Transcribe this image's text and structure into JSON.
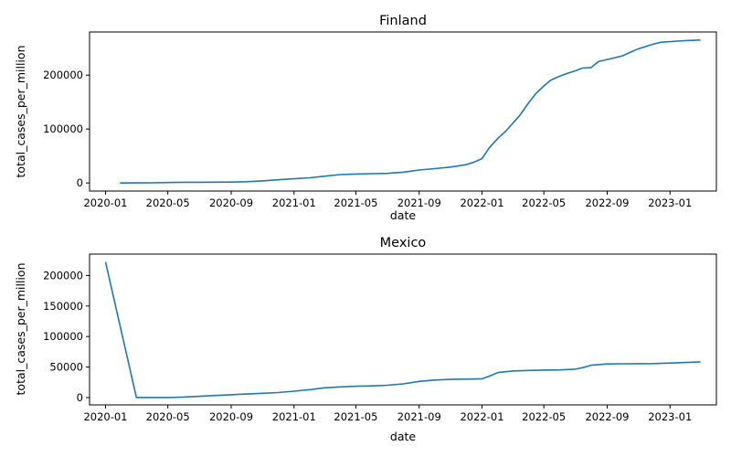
{
  "colors": {
    "line": "#1f77b4",
    "axis": "#000000",
    "background": "#ffffff"
  },
  "chart_data": [
    {
      "type": "line",
      "title": "Finland",
      "xlabel": "date",
      "ylabel": "total_cases_per_million",
      "xlim": [
        "2019-12-01",
        "2023-04-01"
      ],
      "ylim": [
        -15000,
        280000
      ],
      "x_ticks": [
        "2020-01",
        "2020-05",
        "2020-09",
        "2021-01",
        "2021-05",
        "2021-09",
        "2022-01",
        "2022-05",
        "2022-09",
        "2023-01"
      ],
      "y_ticks": [
        0,
        100000,
        200000
      ],
      "y_tick_labels": [
        "0",
        "100000",
        "200000"
      ],
      "grid": false,
      "series": [
        {
          "x": [
            "2020-01-29",
            "2020-03-01",
            "2020-04-01",
            "2020-05-01",
            "2020-06-01",
            "2020-07-01",
            "2020-08-01",
            "2020-09-01",
            "2020-10-01",
            "2020-11-01",
            "2020-12-01",
            "2021-01-01",
            "2021-02-01",
            "2021-03-01",
            "2021-04-01",
            "2021-05-01",
            "2021-06-01",
            "2021-07-01",
            "2021-08-01",
            "2021-09-01",
            "2021-10-01",
            "2021-11-01",
            "2021-12-01",
            "2021-12-15",
            "2022-01-01",
            "2022-01-15",
            "2022-02-01",
            "2022-02-15",
            "2022-03-01",
            "2022-03-15",
            "2022-04-01",
            "2022-04-15",
            "2022-05-01",
            "2022-05-15",
            "2022-06-01",
            "2022-06-15",
            "2022-07-01",
            "2022-07-15",
            "2022-08-01",
            "2022-08-15",
            "2022-09-01",
            "2022-09-15",
            "2022-10-01",
            "2022-10-15",
            "2022-11-01",
            "2022-11-15",
            "2022-12-01",
            "2022-12-15",
            "2023-01-01",
            "2023-01-15",
            "2023-02-01",
            "2023-03-01"
          ],
          "y": [
            0,
            50,
            200,
            700,
            1200,
            1300,
            1400,
            1600,
            2300,
            3900,
            5900,
            7700,
            9600,
            12500,
            15500,
            16500,
            17200,
            17700,
            20000,
            24000,
            26500,
            29500,
            34000,
            38000,
            45000,
            65000,
            83000,
            95000,
            110000,
            125000,
            148000,
            165000,
            180000,
            191000,
            198000,
            203000,
            208000,
            213000,
            214000,
            225000,
            229000,
            232000,
            236000,
            242000,
            249000,
            253000,
            258000,
            261000,
            262000,
            263000,
            264000,
            265000
          ]
        }
      ]
    },
    {
      "type": "line",
      "title": "Mexico",
      "xlabel": "date",
      "ylabel": "total_cases_per_million",
      "xlim": [
        "2019-12-01",
        "2023-04-01"
      ],
      "ylim": [
        -12000,
        235000
      ],
      "x_ticks": [
        "2020-01",
        "2020-05",
        "2020-09",
        "2021-01",
        "2021-05",
        "2021-09",
        "2022-01",
        "2022-05",
        "2022-09",
        "2023-01"
      ],
      "y_ticks": [
        0,
        50000,
        100000,
        150000,
        200000
      ],
      "y_tick_labels": [
        "0",
        "50000",
        "100000",
        "150000",
        "200000"
      ],
      "grid": false,
      "series": [
        {
          "x": [
            "2020-01-01",
            "2020-03-01",
            "2020-04-01",
            "2020-05-01",
            "2020-06-01",
            "2020-07-01",
            "2020-08-01",
            "2020-09-01",
            "2020-10-01",
            "2020-11-01",
            "2020-12-01",
            "2021-01-01",
            "2021-02-01",
            "2021-03-01",
            "2021-04-01",
            "2021-05-01",
            "2021-06-01",
            "2021-07-01",
            "2021-08-01",
            "2021-09-01",
            "2021-10-01",
            "2021-11-01",
            "2021-12-01",
            "2022-01-01",
            "2022-01-15",
            "2022-02-01",
            "2022-03-01",
            "2022-04-01",
            "2022-05-01",
            "2022-06-01",
            "2022-07-01",
            "2022-07-15",
            "2022-08-01",
            "2022-09-01",
            "2022-10-01",
            "2022-11-01",
            "2022-12-01",
            "2023-01-01",
            "2023-02-01",
            "2023-03-01"
          ],
          "y": [
            222000,
            100,
            100,
            200,
            800,
            2000,
            3400,
            4600,
            5800,
            7000,
            8200,
            10500,
            13000,
            16000,
            17500,
            18500,
            19200,
            20200,
            22500,
            26500,
            28700,
            29700,
            30200,
            30800,
            35000,
            41000,
            43500,
            44500,
            45000,
            45300,
            46500,
            49000,
            53000,
            55000,
            55300,
            55500,
            55700,
            56500,
            57500,
            58500
          ]
        }
      ]
    }
  ]
}
